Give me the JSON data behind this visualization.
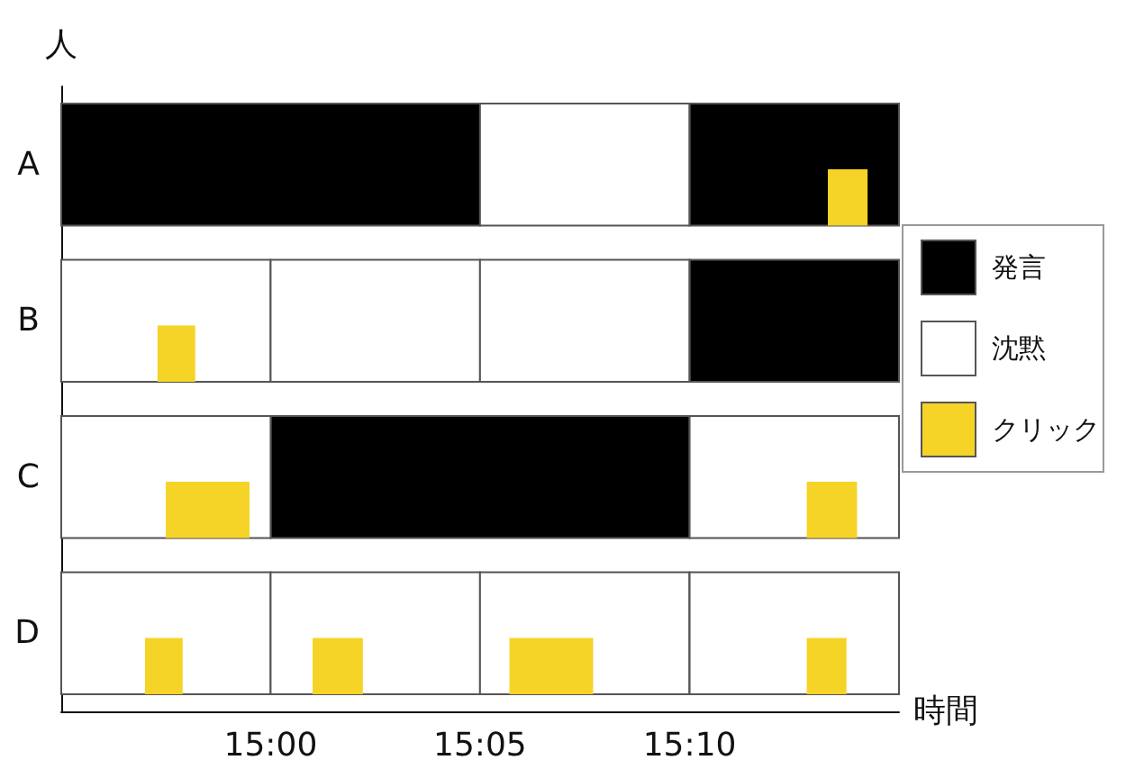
{
  "chart_data": {
    "type": "bar",
    "orientation": "horizontal",
    "xlabel": "時間",
    "ylabel": "人",
    "categories": [
      "A",
      "B",
      "C",
      "D"
    ],
    "xlim": [
      14.9167,
      15.25
    ],
    "xticks": [
      {
        "value": 15,
        "label": "15:00"
      },
      {
        "value": 15.0833,
        "label": "15:05"
      },
      {
        "value": 15.1667,
        "label": "15:10"
      }
    ],
    "legend": "right",
    "grid": false,
    "series": [
      {
        "name": "発言",
        "color": "#000000",
        "base": [
          14.9167,
          15.1667,
          15,
          null
        ],
        "values": [
          0.1667,
          0.0833,
          0.1667,
          null
        ]
      },
      {
        "color": "#000000",
        "base": [
          15.1667,
          null,
          null,
          null
        ],
        "values": [
          0.0833,
          null,
          null,
          null
        ]
      },
      {
        "name": "沈黙",
        "color": "#ffffff",
        "base": [
          15.0833,
          14.9167,
          14.9167,
          14.9167
        ],
        "values": [
          0.0833,
          0.0833,
          0.0833,
          0.0833
        ]
      },
      {
        "color": "#ffffff",
        "base": [
          null,
          15,
          15.1667,
          15
        ],
        "values": [
          null,
          0.0833,
          0.0833,
          0.0833
        ]
      },
      {
        "color": "#ffffff",
        "base": [
          null,
          15.0833,
          null,
          15.0833
        ],
        "values": [
          null,
          0.0833,
          null,
          0.0833
        ]
      },
      {
        "color": "#ffffff",
        "base": [
          null,
          null,
          null,
          15.1667
        ],
        "values": [
          null,
          null,
          null,
          0.0833
        ]
      },
      {
        "name": "クリック",
        "color": "#f5d327",
        "marker": "square",
        "base": [
          15.2217,
          14.955,
          14.9583,
          14.95
        ],
        "values": [
          0.0158,
          0.015,
          0.0333,
          0.015
        ]
      },
      {
        "color": "#f5d327",
        "marker": "square",
        "base": [
          null,
          null,
          15.2133,
          15.0167
        ],
        "values": [
          null,
          null,
          0.02,
          0.02
        ]
      },
      {
        "color": "#f5d327",
        "marker": "square",
        "base": [
          null,
          null,
          null,
          15.095
        ],
        "values": [
          null,
          null,
          null,
          0.0333
        ]
      },
      {
        "color": "#f5d327",
        "marker": "square",
        "base": [
          null,
          null,
          null,
          15.2133
        ],
        "values": [
          null,
          null,
          null,
          0.0158
        ]
      }
    ]
  }
}
